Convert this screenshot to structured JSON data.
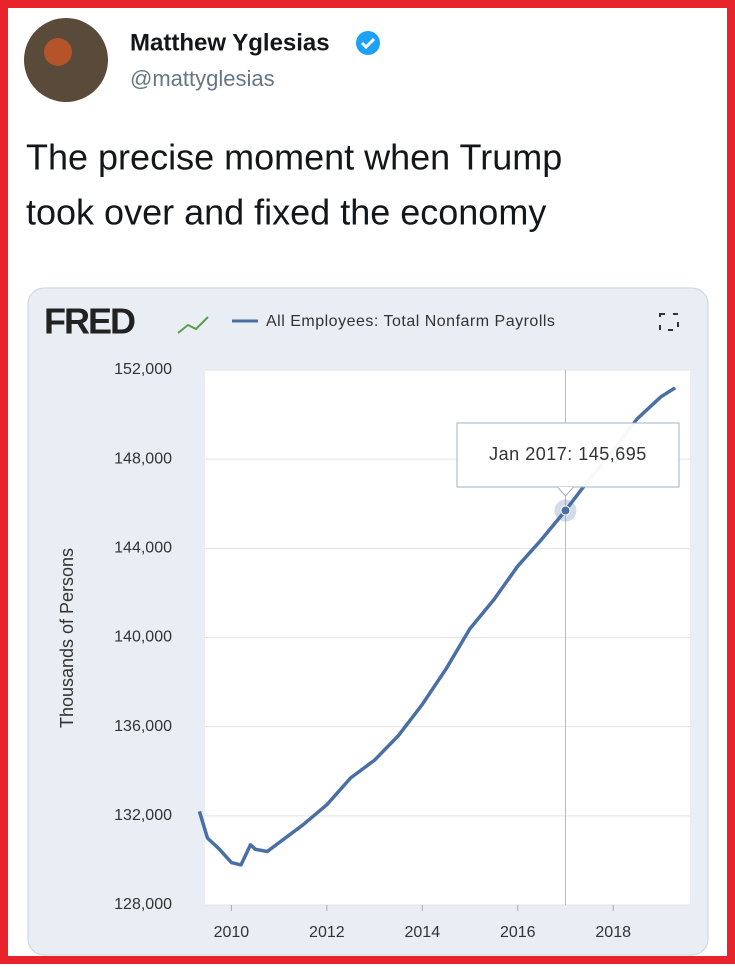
{
  "author": {
    "name": "Matthew Yglesias",
    "handle": "@mattyglesias"
  },
  "tweet": {
    "lines": [
      "The precise moment when Trump",
      "took over and fixed the economy"
    ]
  },
  "logo": "FRED",
  "chart_data": {
    "type": "line",
    "x": [
      2009.33,
      2009.5,
      2009.75,
      2010.0,
      2010.2,
      2010.4,
      2010.5,
      2010.75,
      2011.0,
      2011.5,
      2012.0,
      2012.5,
      2013.0,
      2013.5,
      2014.0,
      2014.5,
      2015.0,
      2015.5,
      2016.0,
      2016.5,
      2017.0,
      2017.5,
      2018.0,
      2018.5,
      2019.0,
      2019.3
    ],
    "series": [
      {
        "name": "All Employees: Total Nonfarm Payrolls",
        "color": "#4a6fa5",
        "values": [
          132200,
          131000,
          130500,
          129900,
          129800,
          130700,
          130500,
          130400,
          130800,
          131600,
          132500,
          133700,
          134500,
          135600,
          137000,
          138600,
          140400,
          141700,
          143200,
          144400,
          145695,
          147100,
          148400,
          149800,
          150800,
          151200
        ]
      }
    ],
    "ylabel": "Thousands of Persons",
    "xlim": [
      2009.3,
      2019.4
    ],
    "xticks": [
      2010,
      2012,
      2014,
      2016,
      2018
    ],
    "ylim": [
      128000,
      152000
    ],
    "yticks": [
      {
        "value": 128000,
        "label": "128,000"
      },
      {
        "value": 132000,
        "label": "132,000"
      },
      {
        "value": 136000,
        "label": "136,000"
      },
      {
        "value": 140000,
        "label": "140,000"
      },
      {
        "value": 144000,
        "label": "144,000"
      },
      {
        "value": 148000,
        "label": "148,000"
      },
      {
        "value": 152000,
        "label": "152,000"
      }
    ],
    "grid": true,
    "tooltip": "Jan 2017: 145,695"
  }
}
